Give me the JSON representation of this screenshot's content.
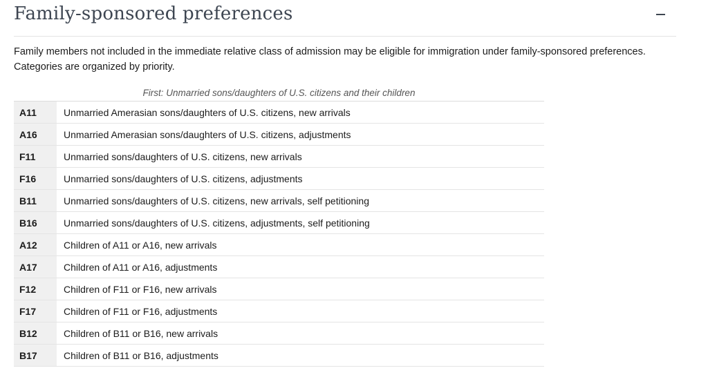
{
  "section": {
    "title": "Family-sponsored preferences",
    "toggle_symbol": "–",
    "toggle_icon": "minus-icon"
  },
  "intro": "Family members not included in the immediate relative class of admission may be eligible for immigration under family-sponsored preferences. Categories are organized by priority.",
  "table": {
    "caption": "First: Unmarried sons/daughters of U.S. citizens and their children",
    "rows": [
      {
        "code": "A11",
        "description": "Unmarried Amerasian sons/daughters of U.S. citizens, new arrivals"
      },
      {
        "code": "A16",
        "description": "Unmarried Amerasian sons/daughters of U.S. citizens, adjustments"
      },
      {
        "code": "F11",
        "description": "Unmarried sons/daughters of U.S. citizens, new arrivals"
      },
      {
        "code": "F16",
        "description": "Unmarried sons/daughters of U.S. citizens, adjustments"
      },
      {
        "code": "B11",
        "description": "Unmarried sons/daughters of U.S. citizens, new arrivals, self petitioning"
      },
      {
        "code": "B16",
        "description": "Unmarried sons/daughters of U.S. citizens, adjustments, self petitioning"
      },
      {
        "code": "A12",
        "description": "Children of A11 or A16, new arrivals"
      },
      {
        "code": "A17",
        "description": "Children of A11 or A16, adjustments"
      },
      {
        "code": "F12",
        "description": "Children of F11 or F16, new arrivals"
      },
      {
        "code": "F17",
        "description": "Children of F11 or F16, adjustments"
      },
      {
        "code": "B12",
        "description": "Children of B11 or B16, new arrivals"
      },
      {
        "code": "B17",
        "description": "Children of B11 or B16, adjustments"
      }
    ]
  }
}
